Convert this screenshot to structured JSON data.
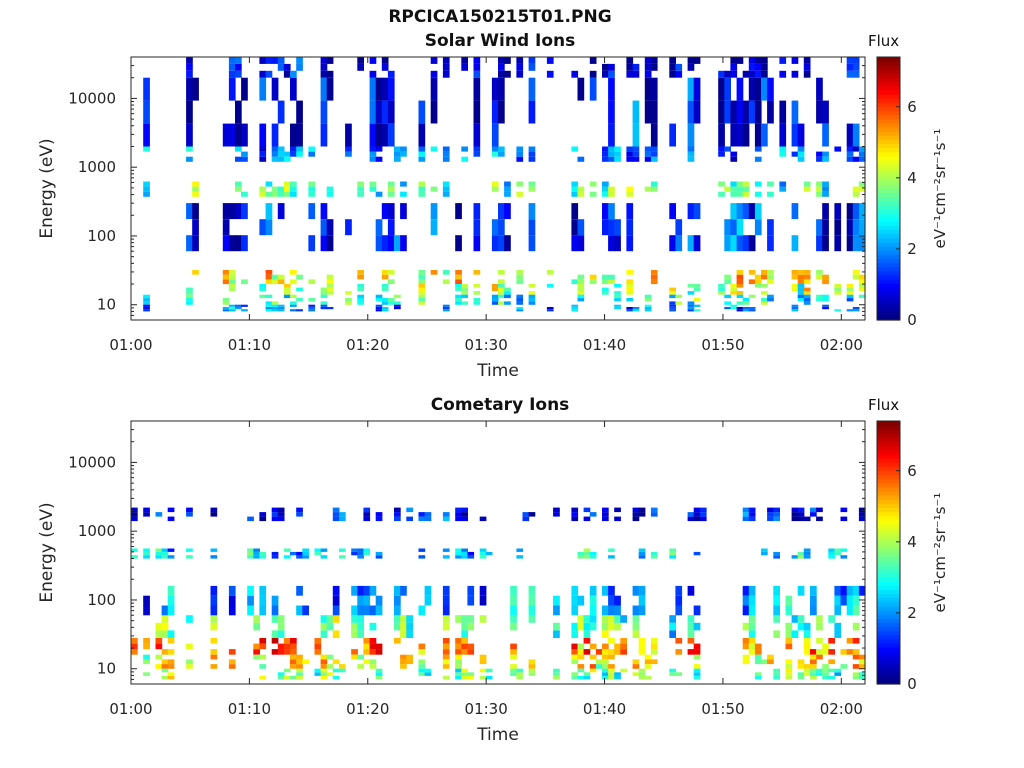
{
  "figure": {
    "title": "RPCICA150215T01.PNG"
  },
  "chart_data": [
    {
      "type": "heatmap",
      "title": "Solar Wind Ions",
      "xlabel": "Time",
      "ylabel": "Energy (eV)",
      "xlim": [
        "01:00",
        "02:02"
      ],
      "ylim": [
        6,
        40000
      ],
      "yscale": "log",
      "x_ticks": [
        "01:00",
        "01:10",
        "01:20",
        "01:30",
        "01:40",
        "01:50",
        "02:00"
      ],
      "y_ticks": [
        "10",
        "100",
        "1000",
        "10000"
      ],
      "colorbar": {
        "label": "Flux",
        "units": "eV⁻¹cm⁻²sr⁻¹s⁻¹",
        "ticks": [
          "0",
          "2",
          "4",
          "6"
        ],
        "range": [
          0,
          7.4
        ],
        "colormap": "jet"
      },
      "bands": [
        {
          "energy": [
            20,
            32
          ],
          "flux": 4.6
        },
        {
          "energy": [
            14,
            20
          ],
          "flux": 4.0
        },
        {
          "energy": [
            10,
            14
          ],
          "flux": 2.8
        },
        {
          "energy": [
            8,
            10
          ],
          "flux": 1.8
        },
        {
          "energy": [
            370,
            620
          ],
          "flux": 3.2
        },
        {
          "energy": [
            1200,
            2000
          ],
          "flux": 1.8
        },
        {
          "energy": [
            60,
            300
          ],
          "flux": 1.3
        },
        {
          "energy": [
            2000,
            20000
          ],
          "flux": 0.8
        },
        {
          "energy": [
            20000,
            40000
          ],
          "flux": 0.5
        }
      ],
      "grid": false
    },
    {
      "type": "heatmap",
      "title": "Cometary Ions",
      "xlabel": "Time",
      "ylabel": "Energy (eV)",
      "xlim": [
        "01:00",
        "02:02"
      ],
      "ylim": [
        6,
        40000
      ],
      "yscale": "log",
      "x_ticks": [
        "01:00",
        "01:10",
        "01:20",
        "01:30",
        "01:40",
        "01:50",
        "02:00"
      ],
      "y_ticks": [
        "10",
        "100",
        "1000",
        "10000"
      ],
      "colorbar": {
        "label": "Flux",
        "units": "eV⁻¹cm⁻²sr⁻¹s⁻¹",
        "ticks": [
          "0",
          "2",
          "4",
          "6"
        ],
        "range": [
          0,
          7.4
        ],
        "colormap": "jet"
      },
      "bands": [
        {
          "energy": [
            16,
            28
          ],
          "flux": 5.6
        },
        {
          "energy": [
            10,
            16
          ],
          "flux": 4.6
        },
        {
          "energy": [
            7,
            10
          ],
          "flux": 3.6
        },
        {
          "energy": [
            28,
            60
          ],
          "flux": 3.4
        },
        {
          "energy": [
            60,
            160
          ],
          "flux": 2.0
        },
        {
          "energy": [
            400,
            560
          ],
          "flux": 2.4
        },
        {
          "energy": [
            1400,
            2200
          ],
          "flux": 1.0
        }
      ],
      "grid": false
    }
  ]
}
